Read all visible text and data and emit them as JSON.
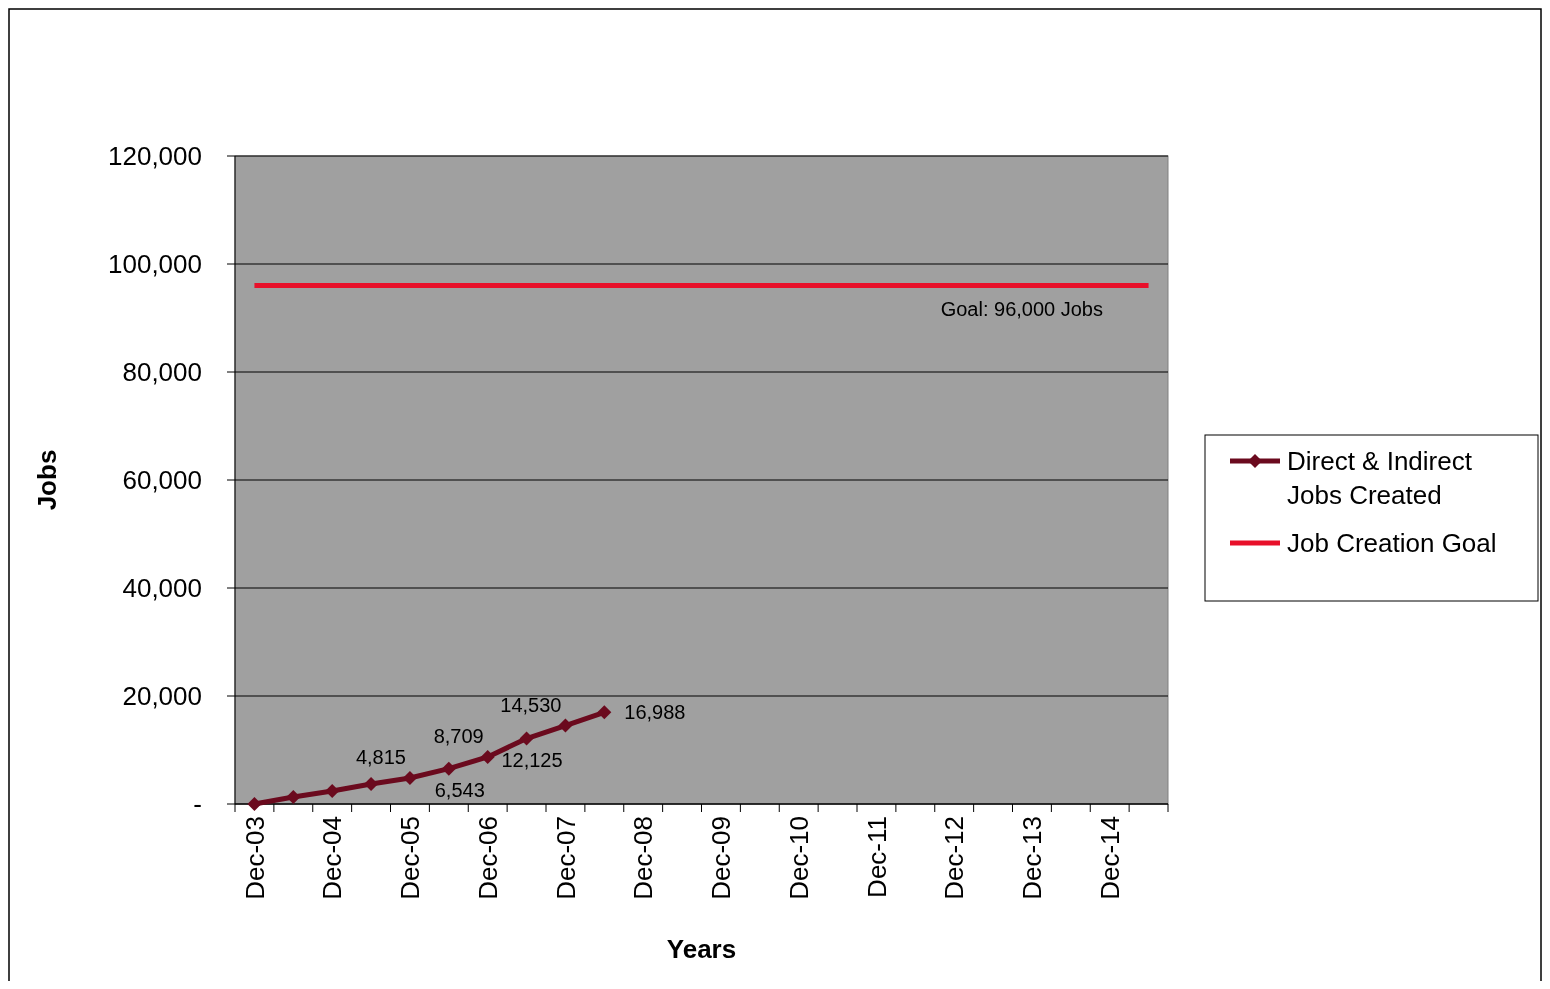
{
  "chart_data": {
    "type": "line",
    "xlabel": "Years",
    "ylabel": "Jobs",
    "categories": [
      "Dec-03",
      null,
      "Dec-04",
      null,
      "Dec-05",
      null,
      "Dec-06",
      null,
      "Dec-07",
      null,
      "Dec-08",
      null,
      "Dec-09",
      null,
      "Dec-10",
      null,
      "Dec-11",
      null,
      "Dec-12",
      null,
      "Dec-13",
      null,
      "Dec-14",
      null
    ],
    "series": [
      {
        "name": "Direct & Indirect Jobs Created",
        "color": "#6b0a1e",
        "marker": "diamond",
        "values": [
          0,
          1300,
          2400,
          3700,
          4815,
          6543,
          8709,
          12125,
          14530,
          16988,
          null,
          null,
          null,
          null,
          null,
          null,
          null,
          null,
          null,
          null,
          null,
          null,
          null,
          null
        ],
        "value_labels": [
          null,
          null,
          null,
          null,
          "4,815",
          "6,543",
          "8,709",
          "12,125",
          "14,530",
          "16,988",
          null,
          null,
          null,
          null,
          null,
          null,
          null,
          null,
          null,
          null,
          null,
          null,
          null,
          null
        ]
      },
      {
        "name": "Job Creation Goal",
        "color": "#e8102a",
        "marker": "none",
        "values": [
          96000,
          96000,
          96000,
          96000,
          96000,
          96000,
          96000,
          96000,
          96000,
          96000,
          96000,
          96000,
          96000,
          96000,
          96000,
          96000,
          96000,
          96000,
          96000,
          96000,
          96000,
          96000,
          96000,
          96000
        ]
      }
    ],
    "ylim": [
      0,
      120000
    ],
    "yticks": [
      {
        "value": 0,
        "label": "-"
      },
      {
        "value": 20000,
        "label": "20,000"
      },
      {
        "value": 40000,
        "label": "40,000"
      },
      {
        "value": 60000,
        "label": "60,000"
      },
      {
        "value": 80000,
        "label": "80,000"
      },
      {
        "value": 100000,
        "label": "100,000"
      },
      {
        "value": 120000,
        "label": "120,000"
      }
    ],
    "grid": "y",
    "legend": "right",
    "annotations": [
      "Goal: 96,000 Jobs"
    ]
  }
}
